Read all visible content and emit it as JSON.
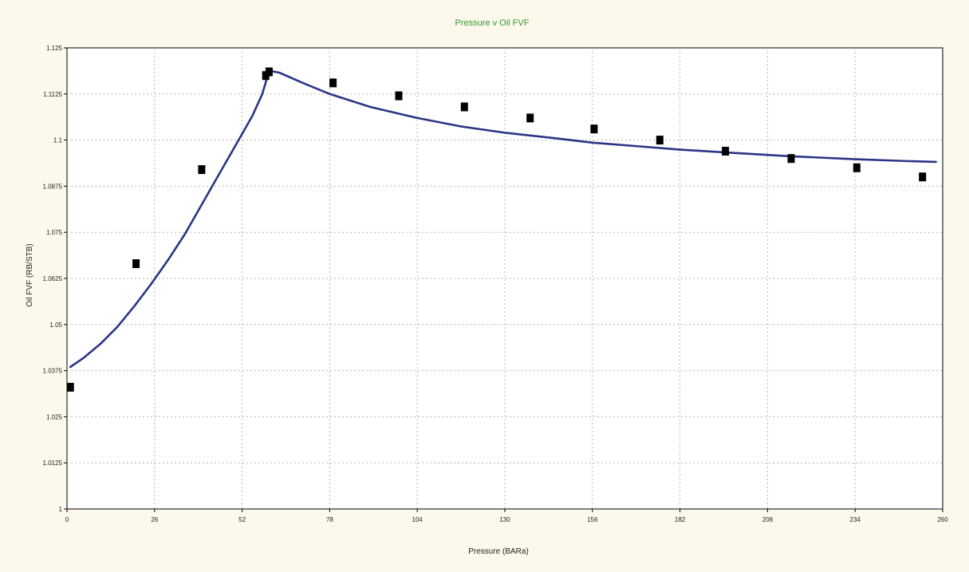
{
  "chart_data": {
    "type": "scatter",
    "title": "Pressure v Oil FVF",
    "xlabel": "Pressure  (BARa)",
    "ylabel": "Oil FVF   (RB/STB)",
    "xlim": [
      0,
      260
    ],
    "ylim": [
      1,
      1.125
    ],
    "x_ticks": [
      "0",
      "26",
      "52",
      "78",
      "104",
      "130",
      "156",
      "182",
      "208",
      "234",
      "260"
    ],
    "y_ticks": [
      "1",
      "1.0125",
      "1.025",
      "1.0375",
      "1.05",
      "1.0625",
      "1.075",
      "1.0875",
      "1.1",
      "1.1125",
      "1.125"
    ],
    "grid": true,
    "series": [
      {
        "kind": "points",
        "marker": "square",
        "color": "#000000",
        "points": [
          {
            "x": 1,
            "y": 1.033
          },
          {
            "x": 20.5,
            "y": 1.0665
          },
          {
            "x": 40,
            "y": 1.092
          },
          {
            "x": 59,
            "y": 1.1175
          },
          {
            "x": 60,
            "y": 1.1185
          },
          {
            "x": 79,
            "y": 1.1155
          },
          {
            "x": 98.5,
            "y": 1.112
          },
          {
            "x": 118,
            "y": 1.109
          },
          {
            "x": 137.5,
            "y": 1.106
          },
          {
            "x": 156.5,
            "y": 1.103
          },
          {
            "x": 176,
            "y": 1.1
          },
          {
            "x": 195.5,
            "y": 1.097
          },
          {
            "x": 215,
            "y": 1.095
          },
          {
            "x": 234.5,
            "y": 1.0925
          },
          {
            "x": 254,
            "y": 1.09
          }
        ]
      },
      {
        "kind": "line",
        "color": "#2a3585",
        "points": [
          {
            "x": 1,
            "y": 1.0385
          },
          {
            "x": 5,
            "y": 1.041
          },
          {
            "x": 10,
            "y": 1.0448
          },
          {
            "x": 15,
            "y": 1.0494
          },
          {
            "x": 20,
            "y": 1.055
          },
          {
            "x": 25,
            "y": 1.061
          },
          {
            "x": 30,
            "y": 1.0675
          },
          {
            "x": 35,
            "y": 1.0745
          },
          {
            "x": 40,
            "y": 1.0825
          },
          {
            "x": 45,
            "y": 1.0905
          },
          {
            "x": 50,
            "y": 1.0985
          },
          {
            "x": 55,
            "y": 1.1065
          },
          {
            "x": 58,
            "y": 1.1125
          },
          {
            "x": 60,
            "y": 1.1188
          },
          {
            "x": 63,
            "y": 1.1183
          },
          {
            "x": 70,
            "y": 1.1155
          },
          {
            "x": 78,
            "y": 1.1125
          },
          {
            "x": 90,
            "y": 1.109
          },
          {
            "x": 104,
            "y": 1.106
          },
          {
            "x": 117,
            "y": 1.1037
          },
          {
            "x": 130,
            "y": 1.102
          },
          {
            "x": 145,
            "y": 1.1005
          },
          {
            "x": 156,
            "y": 1.0993
          },
          {
            "x": 170,
            "y": 1.0983
          },
          {
            "x": 182,
            "y": 1.0974
          },
          {
            "x": 200,
            "y": 1.0964
          },
          {
            "x": 215,
            "y": 1.0956
          },
          {
            "x": 234,
            "y": 1.0948
          },
          {
            "x": 250,
            "y": 1.0943
          },
          {
            "x": 258,
            "y": 1.0941
          }
        ]
      }
    ]
  }
}
